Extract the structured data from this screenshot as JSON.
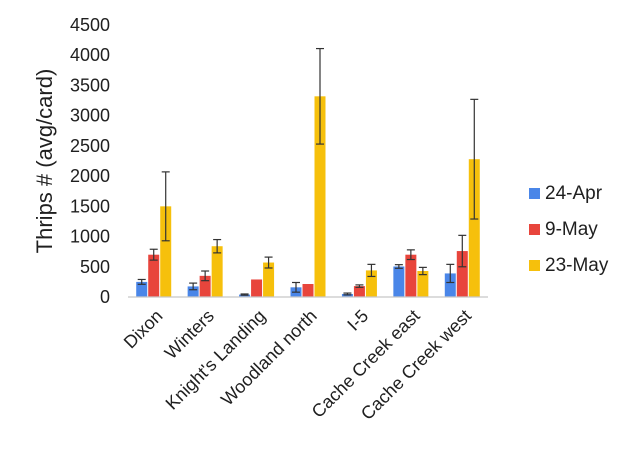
{
  "chart_data": {
    "type": "bar",
    "title": "",
    "xlabel": "",
    "ylabel": "Thrips # (avg/card)",
    "ylim": [
      0,
      4500
    ],
    "yticks": [
      0,
      500,
      1000,
      1500,
      2000,
      2500,
      3000,
      3500,
      4000,
      4500
    ],
    "grid": false,
    "legend_position": "right",
    "categories": [
      "Dixon",
      "Winters",
      "Knight's Landing",
      "Woodland north",
      "I-5",
      "Cache Creek east",
      "Cache Creek west"
    ],
    "series": [
      {
        "name": "24-Apr",
        "color": "#4a86e8",
        "values": [
          250,
          175,
          40,
          160,
          50,
          505,
          390
        ],
        "errors": [
          40,
          55,
          10,
          80,
          15,
          30,
          150
        ]
      },
      {
        "name": "9-May",
        "color": "#e8453c",
        "values": [
          700,
          350,
          290,
          215,
          180,
          700,
          760
        ],
        "errors": [
          90,
          80,
          0,
          0,
          20,
          80,
          260
        ]
      },
      {
        "name": "23-May",
        "color": "#f6c00c",
        "values": [
          1500,
          840,
          570,
          3320,
          440,
          430,
          2280
        ],
        "errors": [
          570,
          110,
          90,
          790,
          100,
          60,
          990
        ]
      }
    ]
  }
}
